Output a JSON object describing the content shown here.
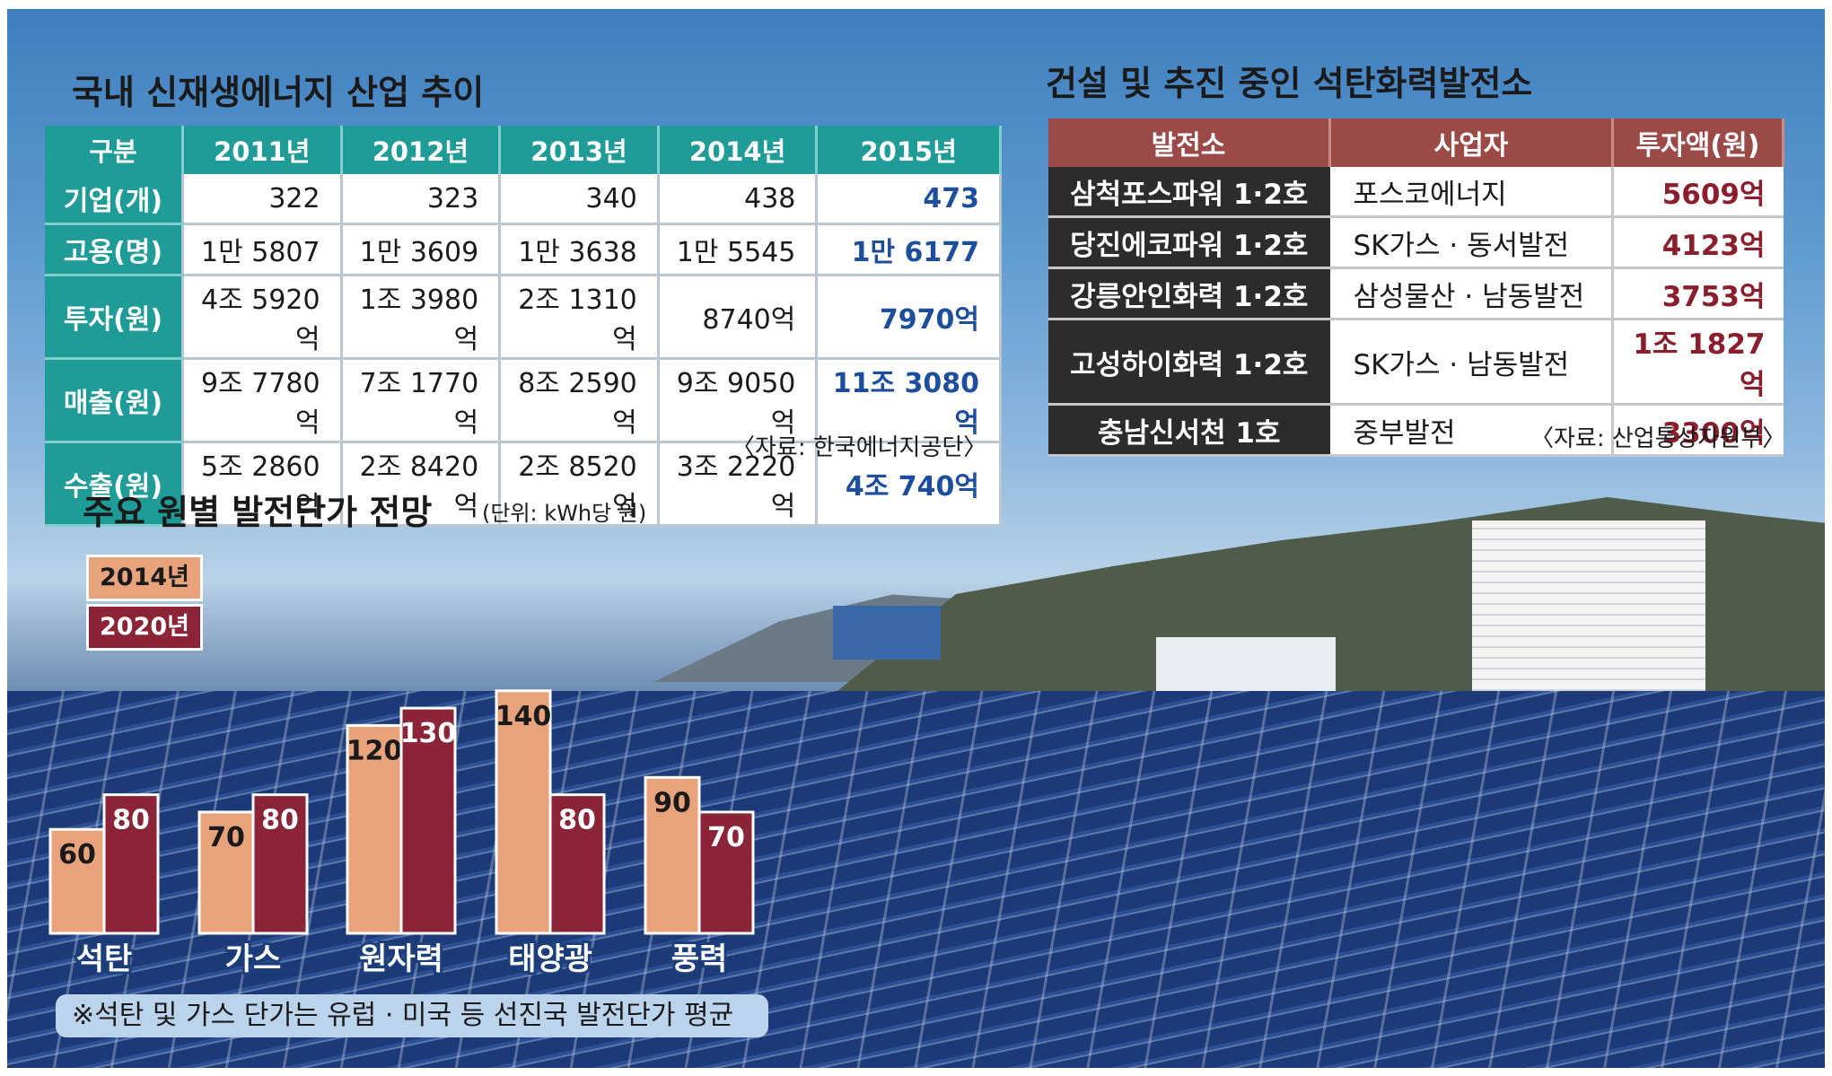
{
  "colors": {
    "teal_header": "#1f9c98",
    "maroon_header": "#9b4a48",
    "bar_2014": "#e8a37d",
    "bar_2020": "#8b2437",
    "highlight_blue": "#1d4e9c",
    "amount_red": "#8b1e2c"
  },
  "table1": {
    "title": "국내 신재생에너지 산업 추이",
    "headers": [
      "구분",
      "2011년",
      "2012년",
      "2013년",
      "2014년",
      "2015년"
    ],
    "rows": [
      {
        "label": "기업(개)",
        "values": [
          "322",
          "323",
          "340",
          "438",
          "473"
        ]
      },
      {
        "label": "고용(명)",
        "values": [
          "1만 5807",
          "1만 3609",
          "1만 3638",
          "1만 5545",
          "1만 6177"
        ]
      },
      {
        "label": "투자(원)",
        "values": [
          "4조 5920억",
          "1조 3980억",
          "2조 1310억",
          "8740억",
          "7970억"
        ]
      },
      {
        "label": "매출(원)",
        "values": [
          "9조 7780억",
          "7조 1770억",
          "8조 2590억",
          "9조 9050억",
          "11조 3080억"
        ]
      },
      {
        "label": "수출(원)",
        "values": [
          "5조 2860억",
          "2조 8420억",
          "2조 8520억",
          "3조 2220억",
          "4조 740억"
        ]
      }
    ],
    "source": "〈자료: 한국에너지공단〉"
  },
  "table2": {
    "title": "건설 및 추진 중인 석탄화력발전소",
    "headers": [
      "발전소",
      "사업자",
      "투자액(원)"
    ],
    "rows": [
      {
        "plant": "삼척포스파워 1·2호",
        "operator": "포스코에너지",
        "amount": "5609억"
      },
      {
        "plant": "당진에코파워 1·2호",
        "operator": "SK가스 · 동서발전",
        "amount": "4123억"
      },
      {
        "plant": "강릉안인화력 1·2호",
        "operator": "삼성물산 · 남동발전",
        "amount": "3753억"
      },
      {
        "plant": "고성하이화력 1·2호",
        "operator": "SK가스 · 남동발전",
        "amount": "1조 1827억"
      },
      {
        "plant": "충남신서천 1호",
        "operator": "중부발전",
        "amount": "3300억"
      }
    ],
    "source": "〈자료: 산업통상자원부〉"
  },
  "chart_data": {
    "type": "bar",
    "title": "주요 원별 발전단가 전망",
    "unit": "(단위: kWh당 원)",
    "categories": [
      "석탄",
      "가스",
      "원자력",
      "태양광",
      "풍력"
    ],
    "series": [
      {
        "name": "2014년",
        "values": [
          60,
          70,
          120,
          140,
          90
        ]
      },
      {
        "name": "2020년",
        "values": [
          80,
          80,
          130,
          80,
          70
        ]
      }
    ],
    "ylim": [
      0,
      150
    ],
    "legend": "top-left",
    "grid": false
  },
  "footnote": "※석탄 및 가스 단가는 유럽 · 미국 등 선진국 발전단가 평균"
}
